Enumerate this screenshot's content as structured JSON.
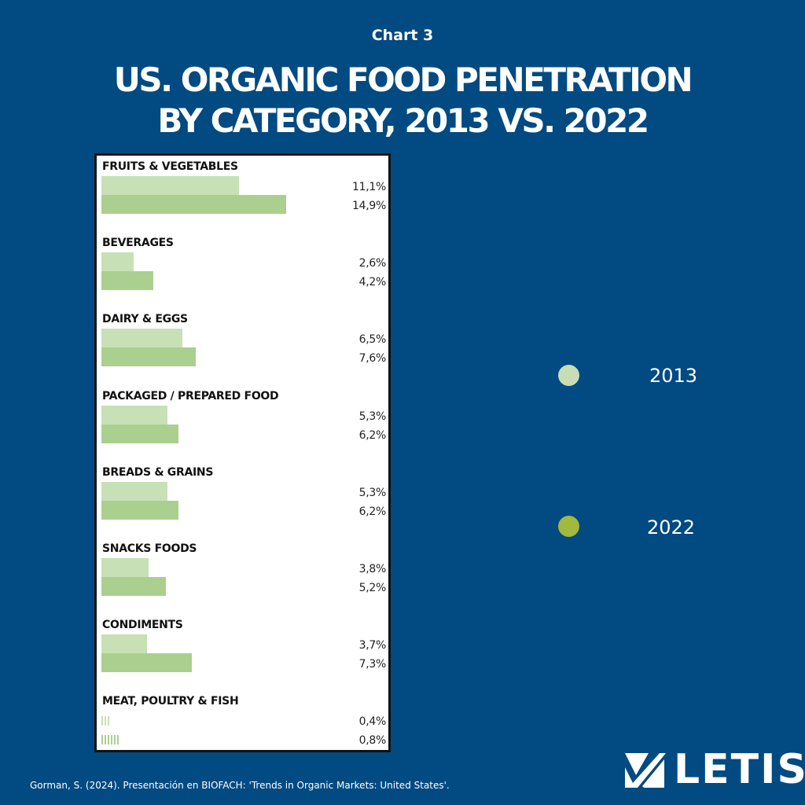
{
  "header": {
    "subtitle": "Chart 3",
    "title_line1": "US. ORGANIC FOOD PENETRATION",
    "title_line2": "BY CATEGORY, 2013 VS. 2022"
  },
  "chart_data": {
    "type": "bar",
    "orientation": "horizontal",
    "categories": [
      "FRUITS & VEGETABLES",
      "BEVERAGES",
      "DAIRY & EGGS",
      "PACKAGED / PREPARED FOOD",
      "BREADS & GRAINS",
      "SNACKS FOODS",
      "CONDIMENTS",
      "MEAT, POULTRY & FISH"
    ],
    "series": [
      {
        "name": "2013",
        "color": "#c8e0b5",
        "values": [
          11.1,
          2.6,
          6.5,
          5.3,
          5.3,
          3.8,
          3.7,
          0.4
        ],
        "labels": [
          "11,1%",
          "2,6%",
          "6,5%",
          "5,3%",
          "5,3%",
          "3,8%",
          "3,7%",
          "0,4%"
        ]
      },
      {
        "name": "2022",
        "color": "#abcf8f",
        "values": [
          14.9,
          4.2,
          7.6,
          6.2,
          6.2,
          5.2,
          7.3,
          0.8
        ],
        "labels": [
          "14,9%",
          "4,2%",
          "7,6%",
          "6,2%",
          "6,2%",
          "5,2%",
          "7,3%",
          "0,8%"
        ]
      }
    ],
    "unit": "%",
    "grid": false
  },
  "legend": {
    "items": [
      {
        "label": "2013",
        "color": "#c8ddb5"
      },
      {
        "label": "2022",
        "color": "#a2b83e"
      }
    ]
  },
  "source": "Gorman, S. (2024). Presentación en BIOFACH: 'Trends in Organic Markets: United States'.",
  "logo": {
    "text": "LETIS"
  }
}
